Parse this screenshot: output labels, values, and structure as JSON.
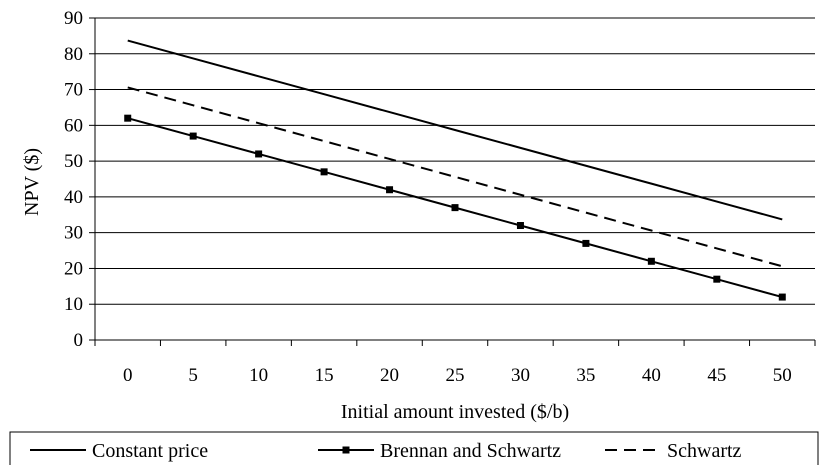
{
  "chart_data": {
    "type": "line",
    "title": "",
    "xlabel": "Initial amount invested ($/b)",
    "ylabel": "NPV ($)",
    "x": [
      0,
      5,
      10,
      15,
      20,
      25,
      30,
      35,
      40,
      45,
      50
    ],
    "xticks": [
      "0",
      "5",
      "10",
      "15",
      "20",
      "25",
      "30",
      "35",
      "40",
      "45",
      "50"
    ],
    "yticks": [
      "0",
      "10",
      "20",
      "30",
      "40",
      "50",
      "60",
      "70",
      "80",
      "90"
    ],
    "xlim": [
      0,
      50
    ],
    "ylim": [
      0,
      90
    ],
    "grid": "horizontal",
    "legend_position": "bottom",
    "series": [
      {
        "name": "Constant price",
        "style": "solid",
        "marker": "none",
        "color": "#000000",
        "values": [
          83.7,
          78.7,
          73.7,
          68.7,
          63.7,
          58.7,
          53.7,
          48.7,
          43.7,
          38.7,
          33.7
        ]
      },
      {
        "name": "Brennan and Schwartz",
        "style": "solid",
        "marker": "square",
        "color": "#000000",
        "values": [
          62,
          57,
          52,
          47,
          42,
          37,
          32,
          27,
          22,
          17,
          12
        ]
      },
      {
        "name": "Schwartz",
        "style": "dashed",
        "marker": "none",
        "color": "#000000",
        "values": [
          70.6,
          65.6,
          60.6,
          55.6,
          50.6,
          45.6,
          40.6,
          35.6,
          30.6,
          25.6,
          20.6
        ]
      }
    ]
  }
}
